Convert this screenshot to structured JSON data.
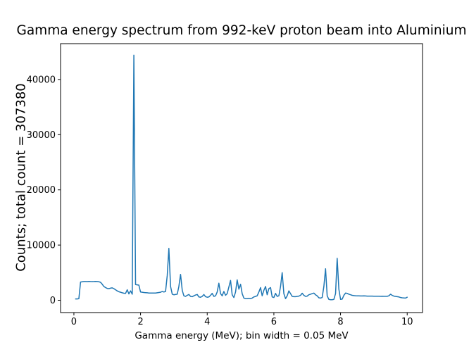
{
  "chart_data": {
    "type": "line",
    "title": "Gamma energy spectrum from 992-keV proton beam into Aluminium",
    "xlabel": "Gamma energy (MeV); bin width = 0.05 MeV",
    "ylabel": "Counts; total count = 307380",
    "total_count": "307380",
    "bin_width_mev": 0.05,
    "line_color": "#1f77b4",
    "axis_color": "#000000",
    "background_color": "#ffffff",
    "grid": false,
    "legend": "none",
    "xticks": [
      0,
      2,
      4,
      6,
      8,
      10
    ],
    "yticks": [
      0,
      10000,
      20000,
      30000,
      40000
    ],
    "xlim": [
      -0.4,
      10.46
    ],
    "ylim": [
      -2230,
      46490
    ],
    "x_start": 0.05,
    "x_step": 0.05,
    "counts": [
      250,
      250,
      300,
      3300,
      3350,
      3400,
      3400,
      3380,
      3420,
      3400,
      3380,
      3400,
      3420,
      3400,
      3350,
      3250,
      2900,
      2500,
      2300,
      2150,
      2100,
      2200,
      2250,
      2100,
      1900,
      1700,
      1550,
      1450,
      1350,
      1280,
      1250,
      1900,
      1150,
      1700,
      1100,
      44400,
      2850,
      2800,
      2750,
      1500,
      1450,
      1400,
      1380,
      1350,
      1320,
      1300,
      1300,
      1320,
      1300,
      1350,
      1400,
      1450,
      1600,
      1500,
      1600,
      4500,
      9400,
      2500,
      1100,
      1000,
      1050,
      1100,
      2500,
      4700,
      1800,
      800,
      700,
      900,
      1050,
      700,
      650,
      800,
      950,
      1050,
      600,
      550,
      700,
      1050,
      650,
      550,
      600,
      900,
      1250,
      700,
      800,
      1500,
      3100,
      1200,
      800,
      1600,
      900,
      1200,
      2400,
      3600,
      1000,
      500,
      1500,
      3700,
      2000,
      2900,
      1200,
      400,
      300,
      300,
      350,
      300,
      400,
      600,
      700,
      800,
      1500,
      2300,
      800,
      1800,
      2500,
      1000,
      2100,
      2300,
      600,
      500,
      1250,
      700,
      800,
      2500,
      5000,
      1200,
      300,
      800,
      1700,
      1200,
      700,
      650,
      650,
      700,
      750,
      900,
      1280,
      900,
      700,
      750,
      1000,
      1100,
      1200,
      1300,
      1000,
      800,
      450,
      400,
      500,
      2500,
      5700,
      800,
      150,
      100,
      100,
      150,
      1200,
      7600,
      2000,
      150,
      200,
      900,
      1300,
      1250,
      1100,
      1000,
      900,
      850,
      820,
      800,
      800,
      780,
      780,
      800,
      780,
      760,
      750,
      760,
      750,
      740,
      730,
      740,
      730,
      720,
      730,
      720,
      710,
      720,
      800,
      1100,
      900,
      750,
      700,
      650,
      600,
      500,
      450,
      420,
      400,
      550
    ]
  }
}
